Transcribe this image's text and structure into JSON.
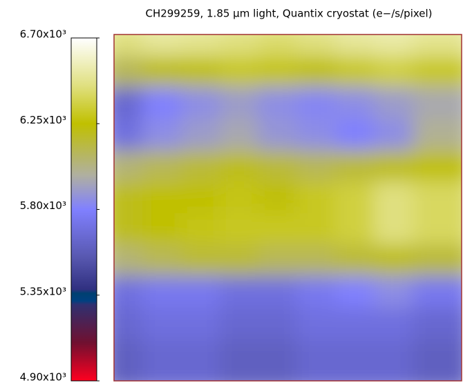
{
  "chart_data": {
    "type": "heatmap",
    "title": "CH299259, 1.85 μm light, Quantix cryostat (e−/s/pixel)",
    "values": [
      [
        6450,
        6500,
        6480,
        6450,
        6420,
        6450,
        6500,
        6520,
        6480
      ],
      [
        6100,
        6200,
        6250,
        6300,
        6280,
        6250,
        6300,
        6350,
        6300
      ],
      [
        5650,
        5800,
        5850,
        5900,
        5850,
        5820,
        5850,
        5900,
        5950
      ],
      [
        5700,
        5850,
        5900,
        5950,
        5880,
        5850,
        5800,
        5850,
        6000
      ],
      [
        6050,
        6100,
        6150,
        6200,
        6150,
        6100,
        6150,
        6200,
        6250
      ],
      [
        6200,
        6250,
        6250,
        6280,
        6250,
        6300,
        6350,
        6450,
        6400
      ],
      [
        6200,
        6250,
        6280,
        6300,
        6300,
        6300,
        6350,
        6450,
        6400
      ],
      [
        6050,
        6100,
        6150,
        6150,
        6100,
        6100,
        6150,
        6200,
        6150
      ],
      [
        5700,
        5750,
        5750,
        5700,
        5700,
        5750,
        5800,
        5850,
        5750
      ],
      [
        5650,
        5700,
        5700,
        5650,
        5650,
        5700,
        5700,
        5700,
        5650
      ],
      [
        5600,
        5650,
        5650,
        5600,
        5600,
        5650,
        5650,
        5650,
        5600
      ]
    ],
    "zlim": [
      4900,
      6700
    ],
    "zticks": [
      {
        "value": 4900,
        "label": "4.90x10³"
      },
      {
        "value": 5350,
        "label": "5.35x10³"
      },
      {
        "value": 5800,
        "label": "5.80x10³"
      },
      {
        "value": 6250,
        "label": "6.25x10³"
      },
      {
        "value": 6700,
        "label": "6.70x10³"
      }
    ],
    "colormap": [
      {
        "value": 4900,
        "color": "#ff0020"
      },
      {
        "value": 5100,
        "color": "#701030"
      },
      {
        "value": 5300,
        "color": "#303070"
      },
      {
        "value": 5320,
        "color": "#004080"
      },
      {
        "value": 5360,
        "color": "#004070"
      },
      {
        "value": 5380,
        "color": "#303080"
      },
      {
        "value": 5550,
        "color": "#5858b0"
      },
      {
        "value": 5800,
        "color": "#8080ff"
      },
      {
        "value": 5980,
        "color": "#b0b0a0"
      },
      {
        "value": 6250,
        "color": "#c0c000"
      },
      {
        "value": 6450,
        "color": "#e0e080"
      },
      {
        "value": 6700,
        "color": "#ffffff"
      }
    ]
  }
}
